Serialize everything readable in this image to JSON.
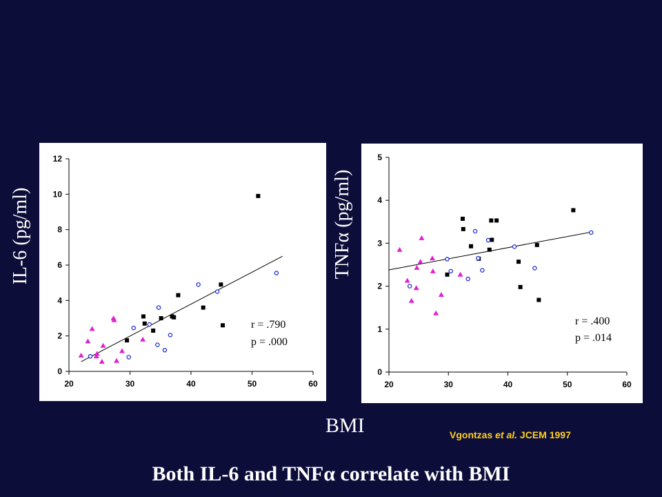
{
  "page": {
    "headline": "Both IL-6 and TNFα correlate with BMI",
    "xlabel": "BMI",
    "citation": {
      "author": "Vgontzas ",
      "etal": "et al.",
      "rest": " JCEM 1997"
    },
    "colors": {
      "background": "#0d0d3a",
      "text": "#ffffff",
      "citation": "#ffd21a",
      "square": "#000000",
      "circle": "#1f2fd6",
      "triangle": "#e020d0"
    }
  },
  "chart_data": [
    {
      "type": "scatter",
      "id": "il6",
      "ylabel": "IL-6 (pg/ml)",
      "xlim": [
        20,
        60
      ],
      "ylim": [
        0,
        12
      ],
      "xticks": [
        20,
        30,
        40,
        50,
        60
      ],
      "yticks": [
        0,
        2,
        4,
        6,
        8,
        10,
        12
      ],
      "stats": {
        "r": "r = .790",
        "p": "p = .000"
      },
      "trendline": [
        [
          22,
          0.55
        ],
        [
          55,
          6.5
        ]
      ],
      "series": [
        {
          "marker": "square",
          "points": [
            [
              29.5,
              1.75
            ],
            [
              32.2,
              3.1
            ],
            [
              32.4,
              2.7
            ],
            [
              33.8,
              2.3
            ],
            [
              35.1,
              3.0
            ],
            [
              36.9,
              3.1
            ],
            [
              37.2,
              3.05
            ],
            [
              37.9,
              4.3
            ],
            [
              42,
              3.6
            ],
            [
              44.9,
              4.9
            ],
            [
              45.2,
              2.6
            ],
            [
              51.0,
              9.9
            ]
          ]
        },
        {
          "marker": "circle",
          "points": [
            [
              23.5,
              0.85
            ],
            [
              29.8,
              0.8
            ],
            [
              30.6,
              2.45
            ],
            [
              33.2,
              2.65
            ],
            [
              34.5,
              1.5
            ],
            [
              34.7,
              3.6
            ],
            [
              35.7,
              1.2
            ],
            [
              36.6,
              2.05
            ],
            [
              41.2,
              4.9
            ],
            [
              44.3,
              4.5
            ],
            [
              54.0,
              5.55
            ]
          ]
        },
        {
          "marker": "triangle",
          "points": [
            [
              22.0,
              0.9
            ],
            [
              23.1,
              1.7
            ],
            [
              23.8,
              2.4
            ],
            [
              24.5,
              0.85
            ],
            [
              24.6,
              1.0
            ],
            [
              25.4,
              0.55
            ],
            [
              25.6,
              1.45
            ],
            [
              27.3,
              3.0
            ],
            [
              27.4,
              2.9
            ],
            [
              27.8,
              0.6
            ],
            [
              28.7,
              1.15
            ],
            [
              32.1,
              1.8
            ]
          ]
        }
      ]
    },
    {
      "type": "scatter",
      "id": "tnf",
      "ylabel": "TNFα (pg/ml)",
      "xlim": [
        20,
        60
      ],
      "ylim": [
        0,
        5
      ],
      "xticks": [
        20,
        30,
        40,
        50,
        60
      ],
      "yticks": [
        0,
        1,
        2,
        3,
        4,
        5
      ],
      "stats": {
        "r": "r = .400",
        "p": "p = .014"
      },
      "trendline": [
        [
          20,
          2.38
        ],
        [
          54,
          3.26
        ]
      ],
      "series": [
        {
          "marker": "square",
          "points": [
            [
              29.8,
              2.27
            ],
            [
              32.4,
              3.57
            ],
            [
              32.5,
              3.33
            ],
            [
              33.8,
              2.93
            ],
            [
              35.1,
              2.64
            ],
            [
              36.9,
              2.85
            ],
            [
              37.2,
              3.53
            ],
            [
              37.3,
              3.08
            ],
            [
              38.1,
              3.53
            ],
            [
              41.8,
              2.57
            ],
            [
              42.1,
              1.98
            ],
            [
              44.9,
              2.96
            ],
            [
              45.2,
              1.68
            ],
            [
              51.0,
              3.77
            ]
          ]
        },
        {
          "marker": "circle",
          "points": [
            [
              23.5,
              2.0
            ],
            [
              29.8,
              2.63
            ],
            [
              30.4,
              2.35
            ],
            [
              33.3,
              2.17
            ],
            [
              34.5,
              3.28
            ],
            [
              35.0,
              2.65
            ],
            [
              35.7,
              2.37
            ],
            [
              36.7,
              3.07
            ],
            [
              41.1,
              2.92
            ],
            [
              44.5,
              2.42
            ],
            [
              54.0,
              3.25
            ]
          ]
        },
        {
          "marker": "triangle",
          "points": [
            [
              21.8,
              2.85
            ],
            [
              23.1,
              2.13
            ],
            [
              23.8,
              1.66
            ],
            [
              24.6,
              1.96
            ],
            [
              24.7,
              2.43
            ],
            [
              25.3,
              2.57
            ],
            [
              25.5,
              3.12
            ],
            [
              27.3,
              2.65
            ],
            [
              27.4,
              2.35
            ],
            [
              27.9,
              1.37
            ],
            [
              28.8,
              1.8
            ],
            [
              32.0,
              2.27
            ]
          ]
        }
      ]
    }
  ]
}
